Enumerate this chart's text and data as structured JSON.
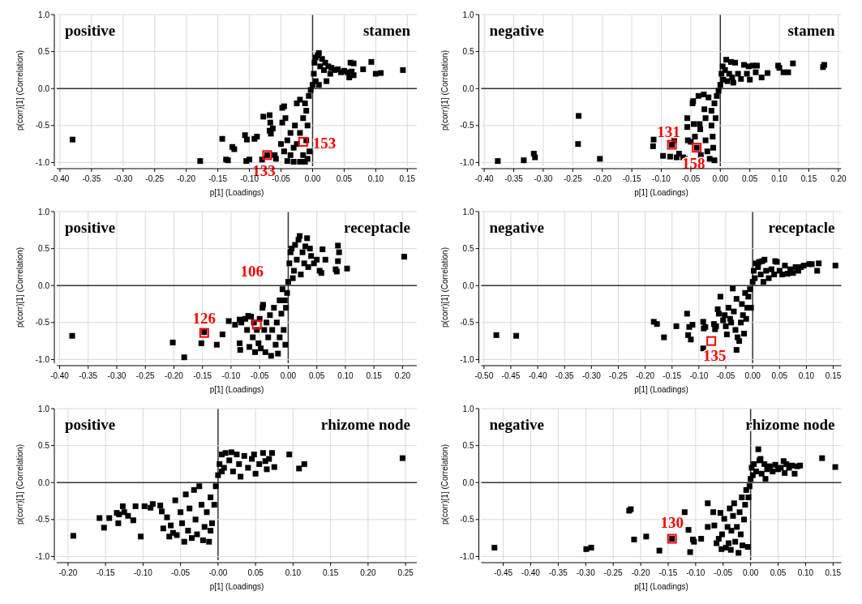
{
  "chart_data": [
    {
      "type": "scatter",
      "xlabel": "p[1] (Loadings)",
      "ylabel": "p(corr)[1] (Correlation)",
      "marker": "square",
      "color": "#000000",
      "grid": true,
      "xlim": [
        -0.405,
        0.165
      ],
      "ylim": [
        -1.05,
        1.0
      ],
      "xticks": [
        {
          "value": -0.4,
          "label": "-0.40"
        },
        {
          "value": -0.35,
          "label": "-0.35"
        },
        {
          "value": -0.3,
          "label": "-0.30"
        },
        {
          "value": -0.25,
          "label": "-0.25"
        },
        {
          "value": -0.2,
          "label": "-0.20"
        },
        {
          "value": -0.15,
          "label": "-0.15"
        },
        {
          "value": -0.1,
          "label": "-0.10"
        },
        {
          "value": -0.05,
          "label": "-0.05"
        },
        {
          "value": 0,
          "label": "0.00"
        },
        {
          "value": 0.05,
          "label": "0.05"
        },
        {
          "value": 0.1,
          "label": "0.10"
        },
        {
          "value": 0.15,
          "label": "0.15"
        }
      ],
      "yticks": [
        {
          "value": -1,
          "label": "-1.0"
        },
        {
          "value": -0.5,
          "label": "-0.5"
        },
        {
          "value": 0,
          "label": "0.0"
        },
        {
          "value": 0.5,
          "label": "0.5"
        },
        {
          "value": 1,
          "label": "1.0"
        }
      ],
      "annotations": [
        "positive",
        "stamen",
        {
          "text": "153",
          "x": -0.015,
          "y": -0.72
        },
        {
          "text": "133",
          "x": -0.072,
          "y": -0.9
        }
      ],
      "x": [
        -0.38,
        -0.178,
        -0.143,
        -0.137,
        -0.134,
        -0.127,
        -0.124,
        -0.107,
        -0.104,
        -0.105,
        -0.1,
        -0.092,
        -0.088,
        -0.08,
        -0.078,
        -0.072,
        -0.068,
        -0.067,
        -0.068,
        -0.066,
        -0.063,
        -0.06,
        -0.058,
        -0.048,
        -0.045,
        -0.043,
        -0.048,
        -0.05,
        -0.045,
        -0.04,
        -0.035,
        -0.03,
        -0.03,
        -0.028,
        -0.025,
        -0.02,
        -0.02,
        -0.015,
        -0.012,
        -0.01,
        -0.01,
        -0.008,
        -0.006,
        -0.003,
        0.0,
        0.002,
        0.003,
        0.005,
        0.008,
        0.01,
        0.012,
        0.015,
        0.018,
        0.02,
        0.022,
        0.025,
        0.028,
        0.03,
        0.035,
        0.04,
        0.045,
        0.05,
        0.055,
        0.058,
        0.06,
        0.062,
        0.065,
        0.065,
        0.08,
        0.093,
        0.1,
        0.108,
        0.143,
        0.005,
        0.01,
        -0.015,
        -0.02,
        -0.025,
        -0.035,
        -0.04,
        -0.012,
        -0.005,
        -0.008
      ],
      "values": [
        -0.69,
        -0.98,
        -0.68,
        -0.96,
        -0.97,
        -0.79,
        -0.82,
        -0.63,
        -0.69,
        -0.98,
        -0.96,
        -0.68,
        -0.65,
        -0.96,
        -0.38,
        -0.9,
        -0.36,
        -0.46,
        -0.57,
        -0.61,
        -0.54,
        -0.9,
        -0.95,
        -0.26,
        -0.24,
        -0.4,
        -0.46,
        -0.75,
        -0.85,
        -0.98,
        -0.6,
        -0.99,
        -0.8,
        -0.5,
        -0.2,
        -0.15,
        -0.99,
        -0.9,
        -0.99,
        -0.7,
        -0.3,
        -0.5,
        -0.1,
        -0.02,
        0.05,
        0.2,
        0.35,
        0.42,
        0.45,
        0.48,
        0.3,
        0.4,
        0.25,
        0.35,
        0.1,
        0.3,
        0.2,
        0.28,
        0.25,
        0.26,
        0.22,
        0.24,
        0.22,
        0.15,
        0.35,
        0.23,
        0.34,
        0.18,
        0.26,
        0.36,
        0.2,
        0.21,
        0.25,
        0.1,
        0.05,
        -0.4,
        -0.6,
        -0.75,
        -0.9,
        -0.7,
        -0.2,
        -0.85,
        -0.95
      ]
    },
    {
      "type": "scatter",
      "xlabel": "p[1] (Loadings)",
      "ylabel": "p(corr)[1] (Correlation)",
      "marker": "square",
      "color": "#000000",
      "grid": true,
      "xlim": [
        -0.405,
        0.205
      ],
      "ylim": [
        -1.05,
        1.0
      ],
      "xticks": [
        {
          "value": -0.4,
          "label": "-0.40"
        },
        {
          "value": -0.35,
          "label": "-0.35"
        },
        {
          "value": -0.3,
          "label": "-0.30"
        },
        {
          "value": -0.25,
          "label": "-0.25"
        },
        {
          "value": -0.2,
          "label": "-0.20"
        },
        {
          "value": -0.15,
          "label": "-0.15"
        },
        {
          "value": -0.1,
          "label": "-0.10"
        },
        {
          "value": -0.05,
          "label": "-0.05"
        },
        {
          "value": 0,
          "label": "0.00"
        },
        {
          "value": 0.05,
          "label": "0.05"
        },
        {
          "value": 0.1,
          "label": "0.10"
        },
        {
          "value": 0.15,
          "label": "0.15"
        },
        {
          "value": 0.2,
          "label": "0.20"
        }
      ],
      "yticks": [
        {
          "value": -1,
          "label": "-1.0"
        },
        {
          "value": -0.5,
          "label": "-0.5"
        },
        {
          "value": 0,
          "label": "0.0"
        },
        {
          "value": 0.5,
          "label": "0.5"
        },
        {
          "value": 1,
          "label": "1.0"
        }
      ],
      "annotations": [
        "negative",
        "stamen",
        {
          "text": "131",
          "x": -0.082,
          "y": -0.76
        },
        {
          "text": "158",
          "x": -0.04,
          "y": -0.8
        }
      ],
      "x": [
        -0.377,
        -0.333,
        -0.316,
        -0.314,
        -0.24,
        -0.241,
        -0.204,
        -0.113,
        -0.114,
        -0.097,
        -0.085,
        -0.082,
        -0.078,
        -0.074,
        -0.07,
        -0.063,
        -0.06,
        -0.056,
        -0.056,
        -0.055,
        -0.05,
        -0.047,
        -0.046,
        -0.045,
        -0.043,
        -0.04,
        -0.037,
        -0.035,
        -0.034,
        -0.033,
        -0.028,
        -0.027,
        -0.025,
        -0.025,
        -0.022,
        -0.02,
        -0.018,
        -0.015,
        -0.015,
        -0.013,
        -0.012,
        -0.01,
        -0.008,
        -0.006,
        -0.003,
        0.0,
        0.002,
        0.004,
        0.008,
        0.01,
        0.012,
        0.015,
        0.018,
        0.02,
        0.022,
        0.025,
        0.03,
        0.035,
        0.04,
        0.045,
        0.048,
        0.05,
        0.055,
        0.06,
        0.062,
        0.07,
        0.08,
        0.098,
        0.1,
        0.107,
        0.115,
        0.123,
        0.174,
        0.176,
        0.005,
        -0.01
      ],
      "values": [
        -0.98,
        -0.97,
        -0.88,
        -0.93,
        -0.37,
        -0.75,
        -0.95,
        -0.69,
        -0.78,
        -0.91,
        -0.92,
        -0.76,
        -0.7,
        -0.93,
        -0.88,
        -0.93,
        -0.95,
        -0.4,
        -0.52,
        -0.7,
        -0.72,
        -0.2,
        -0.17,
        -0.48,
        -0.65,
        -0.8,
        -0.1,
        -0.48,
        -0.55,
        -0.9,
        -0.08,
        -0.28,
        -0.4,
        -0.7,
        -0.85,
        -0.12,
        -0.95,
        -0.3,
        -0.5,
        -0.65,
        -0.8,
        -0.97,
        -0.4,
        -0.1,
        -0.03,
        0.05,
        0.2,
        0.3,
        0.25,
        0.39,
        0.1,
        0.2,
        0.36,
        0.15,
        0.08,
        0.35,
        0.2,
        0.13,
        0.32,
        0.2,
        0.3,
        0.12,
        0.31,
        0.22,
        0.31,
        0.15,
        0.21,
        0.31,
        0.28,
        0.22,
        0.22,
        0.34,
        0.29,
        0.32,
        0.12,
        -0.2
      ]
    },
    {
      "type": "scatter",
      "xlabel": "p[1] (Loadings)",
      "ylabel": "p(corr)[1] (Correlation)",
      "marker": "square",
      "color": "#000000",
      "grid": true,
      "xlim": [
        -0.405,
        0.225
      ],
      "ylim": [
        -1.05,
        1.0
      ],
      "xticks": [
        {
          "value": -0.4,
          "label": "-0.40"
        },
        {
          "value": -0.35,
          "label": "-0.35"
        },
        {
          "value": -0.3,
          "label": "-0.30"
        },
        {
          "value": -0.25,
          "label": "-0.25"
        },
        {
          "value": -0.2,
          "label": "-0.20"
        },
        {
          "value": -0.15,
          "label": "-0.15"
        },
        {
          "value": -0.1,
          "label": "-0.10"
        },
        {
          "value": -0.05,
          "label": "-0.05"
        },
        {
          "value": 0,
          "label": "0.00"
        },
        {
          "value": 0.05,
          "label": "0.05"
        },
        {
          "value": 0.1,
          "label": "0.10"
        },
        {
          "value": 0.15,
          "label": "0.15"
        },
        {
          "value": 0.2,
          "label": "0.20"
        }
      ],
      "yticks": [
        {
          "value": -1,
          "label": "-1.0"
        },
        {
          "value": -0.5,
          "label": "-0.5"
        },
        {
          "value": 0,
          "label": "0.0"
        },
        {
          "value": 0.5,
          "label": "0.5"
        },
        {
          "value": 1,
          "label": "1.0"
        }
      ],
      "annotations": [
        "positive",
        "receptacle",
        {
          "text": "126",
          "x": -0.147,
          "y": -0.64
        },
        {
          "text": "106",
          "x": -0.055,
          "y": -0.53
        }
      ],
      "x": [
        -0.378,
        -0.202,
        -0.182,
        -0.152,
        -0.147,
        -0.125,
        -0.115,
        -0.104,
        -0.093,
        -0.085,
        -0.085,
        -0.084,
        -0.082,
        -0.075,
        -0.072,
        -0.07,
        -0.068,
        -0.065,
        -0.062,
        -0.06,
        -0.058,
        -0.055,
        -0.052,
        -0.05,
        -0.048,
        -0.045,
        -0.044,
        -0.042,
        -0.04,
        -0.038,
        -0.035,
        -0.032,
        -0.03,
        -0.028,
        -0.025,
        -0.022,
        -0.02,
        -0.018,
        -0.015,
        -0.015,
        -0.012,
        -0.01,
        -0.008,
        -0.005,
        -0.004,
        -0.002,
        0.0,
        0.002,
        0.004,
        0.006,
        0.01,
        0.012,
        0.015,
        0.018,
        0.02,
        0.022,
        0.025,
        0.028,
        0.03,
        0.033,
        0.035,
        0.038,
        0.04,
        0.045,
        0.05,
        0.055,
        0.058,
        0.06,
        0.065,
        0.083,
        0.085,
        0.087,
        0.087,
        0.089,
        0.103,
        0.203,
        0.008,
        -0.006
      ],
      "values": [
        -0.68,
        -0.77,
        -0.97,
        -0.78,
        -0.63,
        -0.8,
        -0.66,
        -0.48,
        -0.53,
        -0.46,
        -0.78,
        -0.87,
        -0.5,
        -0.45,
        -0.6,
        -0.41,
        -0.83,
        -0.42,
        -0.7,
        -0.5,
        -0.9,
        -0.6,
        -0.78,
        -0.45,
        -0.85,
        -0.3,
        -0.26,
        -0.6,
        -0.9,
        -0.5,
        -0.7,
        -0.4,
        -0.95,
        -0.6,
        -0.3,
        -0.8,
        -0.5,
        -0.92,
        -0.2,
        -0.7,
        -0.38,
        -0.05,
        -0.6,
        -0.8,
        -0.3,
        -0.1,
        0.05,
        0.3,
        0.45,
        0.5,
        0.2,
        0.55,
        0.35,
        0.62,
        0.67,
        0.15,
        0.45,
        0.3,
        0.53,
        0.64,
        0.25,
        0.5,
        0.4,
        0.3,
        0.35,
        0.2,
        0.17,
        0.49,
        0.35,
        0.22,
        0.19,
        0.54,
        0.33,
        0.45,
        0.23,
        0.39,
        0.1,
        -0.2
      ]
    },
    {
      "type": "scatter",
      "xlabel": "p[1] (Loadings)",
      "ylabel": "p(corr)[1] (Correlation)",
      "marker": "square",
      "color": "#000000",
      "grid": true,
      "xlim": [
        -0.505,
        0.165
      ],
      "ylim": [
        -1.05,
        1.0
      ],
      "xticks": [
        {
          "value": -0.5,
          "label": "-0.50"
        },
        {
          "value": -0.45,
          "label": "-0.45"
        },
        {
          "value": -0.4,
          "label": "-0.40"
        },
        {
          "value": -0.35,
          "label": "-0.35"
        },
        {
          "value": -0.3,
          "label": "-0.30"
        },
        {
          "value": -0.25,
          "label": "-0.25"
        },
        {
          "value": -0.2,
          "label": "-0.20"
        },
        {
          "value": -0.15,
          "label": "-0.15"
        },
        {
          "value": -0.1,
          "label": "-0.10"
        },
        {
          "value": -0.05,
          "label": "-0.05"
        },
        {
          "value": 0,
          "label": "0.00"
        },
        {
          "value": 0.05,
          "label": "0.05"
        },
        {
          "value": 0.1,
          "label": "0.10"
        },
        {
          "value": 0.15,
          "label": "0.15"
        }
      ],
      "yticks": [
        {
          "value": -1,
          "label": "-1.0"
        },
        {
          "value": -0.5,
          "label": "-0.5"
        },
        {
          "value": 0,
          "label": "0.0"
        },
        {
          "value": 0.5,
          "label": "0.5"
        },
        {
          "value": 1,
          "label": "1.0"
        }
      ],
      "annotations": [
        "negative",
        "receptacle",
        {
          "text": "135",
          "x": -0.077,
          "y": -0.75
        }
      ],
      "x": [
        -0.477,
        -0.44,
        -0.184,
        -0.178,
        -0.165,
        -0.142,
        -0.122,
        -0.12,
        -0.118,
        -0.115,
        -0.112,
        -0.092,
        -0.091,
        -0.092,
        -0.088,
        -0.072,
        -0.07,
        -0.068,
        -0.065,
        -0.063,
        -0.06,
        -0.055,
        -0.052,
        -0.05,
        -0.048,
        -0.045,
        -0.042,
        -0.04,
        -0.037,
        -0.035,
        -0.032,
        -0.03,
        -0.03,
        -0.028,
        -0.025,
        -0.022,
        -0.02,
        -0.018,
        -0.016,
        -0.014,
        -0.012,
        -0.01,
        -0.008,
        -0.005,
        -0.003,
        0.0,
        0.002,
        0.004,
        0.006,
        0.01,
        0.012,
        0.015,
        0.018,
        0.02,
        0.022,
        0.025,
        0.03,
        0.035,
        0.04,
        0.042,
        0.045,
        0.05,
        0.055,
        0.06,
        0.065,
        0.07,
        0.075,
        0.08,
        0.085,
        0.09,
        0.095,
        0.105,
        0.11,
        0.12,
        0.123,
        0.154
      ],
      "values": [
        -0.67,
        -0.68,
        -0.49,
        -0.52,
        -0.7,
        -0.55,
        -0.38,
        -0.67,
        -0.56,
        -0.73,
        -0.53,
        -0.49,
        -0.58,
        -0.85,
        -0.56,
        -0.52,
        -0.59,
        -0.55,
        -0.32,
        -0.38,
        -0.15,
        -0.47,
        -0.4,
        -0.55,
        -0.66,
        -0.3,
        -0.45,
        -0.5,
        -0.04,
        -0.35,
        -0.6,
        -0.87,
        -0.18,
        -0.7,
        -0.75,
        -0.5,
        -0.25,
        -0.4,
        -0.65,
        -0.1,
        -0.45,
        -0.3,
        -0.15,
        -0.05,
        -0.3,
        0.05,
        0.2,
        0.1,
        0.3,
        0.25,
        0.32,
        0.15,
        0.33,
        0.05,
        0.35,
        0.2,
        0.1,
        0.22,
        0.15,
        0.33,
        0.32,
        0.2,
        0.15,
        0.27,
        0.16,
        0.22,
        0.17,
        0.25,
        0.2,
        0.25,
        0.27,
        0.29,
        0.29,
        0.2,
        0.3,
        0.27
      ]
    },
    {
      "type": "scatter",
      "xlabel": "p[1] (Loadings)",
      "ylabel": "p(corr)[1] (Correlation)",
      "marker": "square",
      "color": "#000000",
      "grid": true,
      "xlim": [
        -0.215,
        0.265
      ],
      "ylim": [
        -1.05,
        1.0
      ],
      "xticks": [
        {
          "value": -0.2,
          "label": "-0.20"
        },
        {
          "value": -0.15,
          "label": "-0.15"
        },
        {
          "value": -0.1,
          "label": "-0.10"
        },
        {
          "value": -0.05,
          "label": "-0.05"
        },
        {
          "value": 0,
          "label": "-0.00"
        },
        {
          "value": 0.05,
          "label": "0.05"
        },
        {
          "value": 0.1,
          "label": "0.10"
        },
        {
          "value": 0.15,
          "label": "0.15"
        },
        {
          "value": 0.2,
          "label": "0.20"
        },
        {
          "value": 0.25,
          "label": "0.25"
        }
      ],
      "yticks": [
        {
          "value": -1,
          "label": "-1.0"
        },
        {
          "value": -0.5,
          "label": "-0.5"
        },
        {
          "value": 0,
          "label": "0.0"
        },
        {
          "value": 0.5,
          "label": "0.5"
        },
        {
          "value": 1,
          "label": "1.0"
        }
      ],
      "annotations": [
        "positive",
        "rhizome node"
      ],
      "x": [
        -0.193,
        -0.158,
        -0.152,
        -0.145,
        -0.135,
        -0.133,
        -0.132,
        -0.127,
        -0.125,
        -0.12,
        -0.113,
        -0.11,
        -0.103,
        -0.098,
        -0.09,
        -0.087,
        -0.077,
        -0.075,
        -0.073,
        -0.068,
        -0.065,
        -0.063,
        -0.06,
        -0.057,
        -0.055,
        -0.05,
        -0.048,
        -0.045,
        -0.043,
        -0.04,
        -0.038,
        -0.035,
        -0.032,
        -0.03,
        -0.028,
        -0.025,
        -0.022,
        -0.02,
        -0.018,
        -0.015,
        -0.012,
        -0.01,
        -0.008,
        -0.005,
        -0.003,
        0.0,
        0.002,
        0.005,
        0.008,
        0.01,
        0.015,
        0.018,
        0.02,
        0.025,
        0.028,
        0.03,
        0.035,
        0.04,
        0.045,
        0.048,
        0.05,
        0.055,
        0.06,
        0.063,
        0.065,
        0.068,
        0.072,
        0.075,
        0.095,
        0.108,
        0.115,
        0.246,
        0.005,
        -0.01
      ],
      "values": [
        -0.72,
        -0.48,
        -0.61,
        -0.48,
        -0.41,
        -0.55,
        -0.43,
        -0.32,
        -0.4,
        -0.45,
        -0.51,
        -0.32,
        -0.73,
        -0.32,
        -0.34,
        -0.29,
        -0.31,
        -0.39,
        -0.62,
        -0.47,
        -0.73,
        -0.58,
        -0.68,
        -0.24,
        -0.71,
        -0.4,
        -0.55,
        -0.8,
        -0.16,
        -0.65,
        -0.35,
        -0.75,
        -0.1,
        -0.5,
        -0.7,
        -0.05,
        -0.3,
        -0.78,
        -0.6,
        -0.4,
        -0.8,
        -0.2,
        -0.55,
        -0.3,
        -0.05,
        0.1,
        0.25,
        0.38,
        0.2,
        0.4,
        0.3,
        0.41,
        0.15,
        0.38,
        0.25,
        0.08,
        0.36,
        0.2,
        0.32,
        0.38,
        0.12,
        0.25,
        0.4,
        0.29,
        0.18,
        0.32,
        0.4,
        0.21,
        0.38,
        0.19,
        0.25,
        0.33,
        0.15,
        -0.65
      ]
    },
    {
      "type": "scatter",
      "xlabel": "p[1] (Loadings)",
      "ylabel": "p(corr)[1] (Correlation)",
      "marker": "square",
      "color": "#000000",
      "grid": true,
      "xlim": [
        -0.49,
        0.165
      ],
      "ylim": [
        -1.05,
        1.0
      ],
      "xticks": [
        {
          "value": -0.45,
          "label": "-0.45"
        },
        {
          "value": -0.4,
          "label": "-0.40"
        },
        {
          "value": -0.35,
          "label": "-0.35"
        },
        {
          "value": -0.3,
          "label": "-0.30"
        },
        {
          "value": -0.25,
          "label": "-0.25"
        },
        {
          "value": -0.2,
          "label": "-0.20"
        },
        {
          "value": -0.15,
          "label": "-0.15"
        },
        {
          "value": -0.1,
          "label": "-0.10"
        },
        {
          "value": -0.05,
          "label": "-0.05"
        },
        {
          "value": 0,
          "label": "0.00"
        },
        {
          "value": 0.05,
          "label": "0.05"
        },
        {
          "value": 0.1,
          "label": "0.10"
        },
        {
          "value": 0.15,
          "label": "0.15"
        }
      ],
      "yticks": [
        {
          "value": -1,
          "label": "-1.0"
        },
        {
          "value": -0.5,
          "label": "-0.5"
        },
        {
          "value": 0,
          "label": "0.0"
        },
        {
          "value": 0.5,
          "label": "0.5"
        },
        {
          "value": 1,
          "label": "1.0"
        }
      ],
      "annotations": [
        "negative",
        "rhizome node",
        {
          "text": "130",
          "x": -0.143,
          "y": -0.76
        }
      ],
      "x": [
        -0.466,
        -0.299,
        -0.29,
        -0.221,
        -0.218,
        -0.212,
        -0.19,
        -0.166,
        -0.143,
        -0.12,
        -0.113,
        -0.11,
        -0.105,
        -0.103,
        -0.09,
        -0.078,
        -0.078,
        -0.068,
        -0.066,
        -0.062,
        -0.058,
        -0.055,
        -0.053,
        -0.052,
        -0.048,
        -0.045,
        -0.042,
        -0.04,
        -0.038,
        -0.036,
        -0.035,
        -0.032,
        -0.03,
        -0.028,
        -0.025,
        -0.022,
        -0.02,
        -0.018,
        -0.016,
        -0.015,
        -0.012,
        -0.01,
        -0.008,
        -0.005,
        -0.004,
        -0.002,
        0.0,
        0.002,
        0.004,
        0.006,
        0.01,
        0.014,
        0.016,
        0.018,
        0.02,
        0.025,
        0.027,
        0.03,
        0.035,
        0.04,
        0.045,
        0.05,
        0.055,
        0.06,
        0.062,
        0.065,
        0.07,
        0.075,
        0.08,
        0.085,
        0.09,
        0.13,
        0.154
      ],
      "values": [
        -0.88,
        -0.9,
        -0.88,
        -0.38,
        -0.36,
        -0.77,
        -0.73,
        -0.92,
        -0.76,
        -0.4,
        -0.64,
        -0.94,
        -0.77,
        -0.8,
        -0.76,
        -0.28,
        -0.6,
        -0.4,
        -0.58,
        -0.82,
        -0.76,
        -0.41,
        -0.9,
        -0.7,
        -0.49,
        -0.88,
        -0.6,
        -0.82,
        -0.35,
        -0.91,
        -0.65,
        -0.45,
        -0.28,
        -0.8,
        -0.6,
        -0.95,
        -0.4,
        -0.7,
        -0.2,
        -0.85,
        -0.5,
        -0.3,
        -0.1,
        -0.87,
        -0.2,
        -0.05,
        0.05,
        0.2,
        0.1,
        0.25,
        0.15,
        0.45,
        0.3,
        0.32,
        0.12,
        0.25,
        0.05,
        0.18,
        0.22,
        0.15,
        0.24,
        0.18,
        0.2,
        0.29,
        0.13,
        0.25,
        0.2,
        0.23,
        0.12,
        0.22,
        0.23,
        0.33,
        0.21
      ]
    }
  ]
}
